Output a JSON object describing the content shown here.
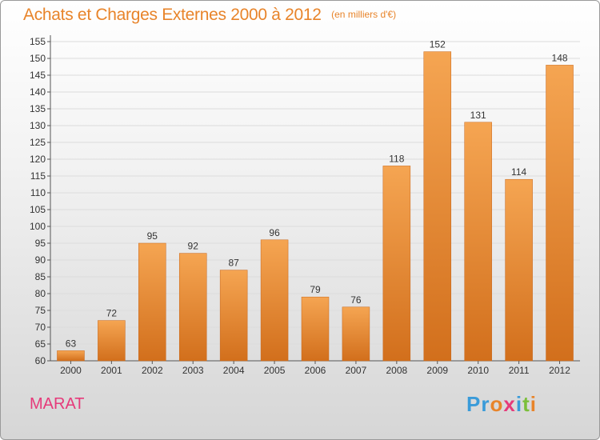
{
  "header": {
    "title": "Achats et Charges Externes 2000 à 2012",
    "subtitle": "(en milliers d'€)"
  },
  "footer": {
    "commune": "MARAT",
    "logo_letters": [
      {
        "char": "P",
        "color": "#3a9bd9"
      },
      {
        "char": "r",
        "color": "#3a9bd9"
      },
      {
        "char": "o",
        "color": "#e8842a"
      },
      {
        "char": "x",
        "color": "#e63a7a"
      },
      {
        "char": "i",
        "color": "#3a9bd9"
      },
      {
        "char": "t",
        "color": "#7bbf3a"
      },
      {
        "char": "i",
        "color": "#e8842a"
      }
    ]
  },
  "colors": {
    "accent": "#e8842a",
    "bar_top": "#f5a552",
    "bar_bottom": "#d26f1c",
    "grid": "#dcdcdc"
  },
  "chart_data": {
    "type": "bar",
    "title": "Achats et Charges Externes 2000 à 2012",
    "subtitle": "(en milliers d'€)",
    "categories": [
      "2000",
      "2001",
      "2002",
      "2003",
      "2004",
      "2005",
      "2006",
      "2007",
      "2008",
      "2009",
      "2010",
      "2011",
      "2012"
    ],
    "values": [
      63,
      72,
      95,
      92,
      87,
      96,
      79,
      76,
      118,
      152,
      131,
      114,
      148
    ],
    "data_labels": [
      "63",
      "72",
      "95",
      "92",
      "87",
      "96",
      "79",
      "76",
      "118",
      "152",
      "131",
      "114",
      "148"
    ],
    "ylim": [
      60,
      155
    ],
    "yticks": [
      "60",
      "65",
      "70",
      "75",
      "80",
      "85",
      "90",
      "95",
      "100",
      "105",
      "110",
      "115",
      "120",
      "125",
      "130",
      "135",
      "140",
      "145",
      "150",
      "155"
    ],
    "grid": true,
    "xlabel": "",
    "ylabel": ""
  }
}
